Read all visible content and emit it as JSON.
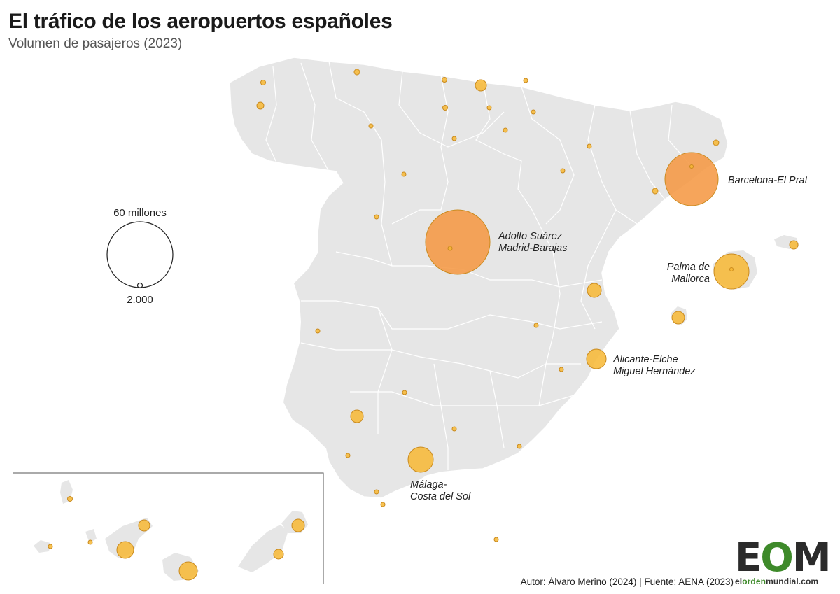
{
  "title": "El tráfico de los aeropuertos españoles",
  "subtitle": "Volumen de pasajeros (2023)",
  "legend": {
    "max_label": "60 millones",
    "min_label": "2.000"
  },
  "airport_labels": {
    "madrid": [
      "Adolfo Suárez",
      "Madrid-Barajas"
    ],
    "barcelona": [
      "Barcelona-El Prat"
    ],
    "palma": [
      "Palma de",
      "Mallorca"
    ],
    "alicante": [
      "Alicante-Elche",
      "Miguel Hernández"
    ],
    "malaga": [
      "Málaga-",
      "Costa del Sol"
    ]
  },
  "source": "Autor: Álvaro Merino (2024) | Fuente: AENA (2023)",
  "logo": {
    "letters_a": "E",
    "letters_b": "O",
    "letters_c": "M",
    "sub_a": "el",
    "sub_b": "orden",
    "sub_c": "mundial.com"
  },
  "colors": {
    "land": "#e6e6e6",
    "border": "#ffffff",
    "bubble_small": "#f7b733",
    "bubble_large": "#f5953e",
    "bubble_stroke": "#c98a1e"
  }
}
